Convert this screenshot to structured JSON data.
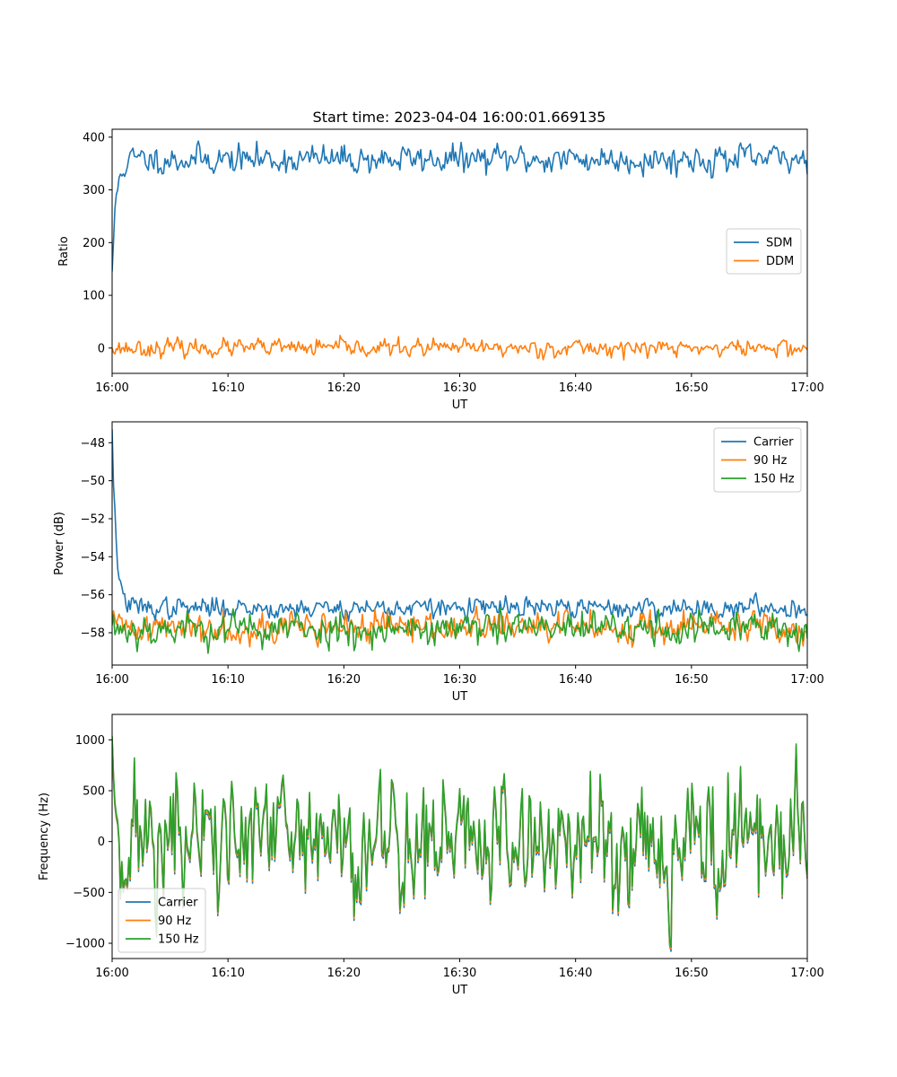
{
  "title": "Start time: 2023-04-04 16:00:01.669135",
  "colors": {
    "blue": "#1f77b4",
    "orange": "#ff7f0e",
    "green": "#2ca02c"
  },
  "chart_data": [
    {
      "type": "line",
      "title": "Start time: 2023-04-04 16:00:01.669135",
      "xlabel": "UT",
      "ylabel": "Ratio",
      "xlim": [
        "16:00",
        "17:00"
      ],
      "ylim": [
        -48,
        415
      ],
      "xticks": [
        "16:00",
        "16:10",
        "16:20",
        "16:30",
        "16:40",
        "16:50",
        "17:00"
      ],
      "yticks": [
        0,
        100,
        200,
        300,
        400
      ],
      "grid": false,
      "legend": "center-right",
      "series": [
        {
          "name": "SDM",
          "color": "#1f77b4",
          "start_value": 145,
          "mean": 358,
          "noise": 15,
          "seed": 11
        },
        {
          "name": "DDM",
          "color": "#ff7f0e",
          "start_value": 0,
          "mean": 0,
          "noise": 9,
          "seed": 23
        }
      ]
    },
    {
      "type": "line",
      "title": "",
      "xlabel": "UT",
      "ylabel": "Power (dB)",
      "xlim": [
        "16:00",
        "17:00"
      ],
      "ylim": [
        -59.7,
        -46.9
      ],
      "xticks": [
        "16:00",
        "16:10",
        "16:20",
        "16:30",
        "16:40",
        "16:50",
        "17:00"
      ],
      "yticks": [
        -48,
        -50,
        -52,
        -54,
        -56,
        -58
      ],
      "grid": false,
      "legend": "top-right",
      "series": [
        {
          "name": "Carrier",
          "color": "#1f77b4",
          "start_value": -47.3,
          "mean": -56.7,
          "noise": 0.3,
          "seed": 37
        },
        {
          "name": "90 Hz",
          "color": "#ff7f0e",
          "start_value": -57.4,
          "mean": -57.7,
          "noise": 0.45,
          "seed": 41
        },
        {
          "name": "150 Hz",
          "color": "#2ca02c",
          "start_value": -57.6,
          "mean": -57.8,
          "noise": 0.5,
          "seed": 53
        }
      ]
    },
    {
      "type": "line",
      "title": "",
      "xlabel": "UT",
      "ylabel": "Frequency (Hz)",
      "xlim": [
        "16:00",
        "17:00"
      ],
      "ylim": [
        -1150,
        1250
      ],
      "xticks": [
        "16:00",
        "16:10",
        "16:20",
        "16:30",
        "16:40",
        "16:50",
        "17:00"
      ],
      "yticks": [
        1000,
        500,
        0,
        -500,
        -1000
      ],
      "grid": false,
      "legend": "lower-left",
      "series": [
        {
          "name": "Carrier",
          "color": "#1f77b4",
          "start_value": 1000,
          "mean": -20,
          "noise": 380,
          "seed": 71
        },
        {
          "name": "90 Hz",
          "color": "#ff7f0e",
          "start_value": 1020,
          "mean": 0,
          "noise": 380,
          "seed": 71
        },
        {
          "name": "150 Hz",
          "color": "#2ca02c",
          "start_value": 1040,
          "mean": 20,
          "noise": 380,
          "seed": 71
        }
      ]
    }
  ]
}
